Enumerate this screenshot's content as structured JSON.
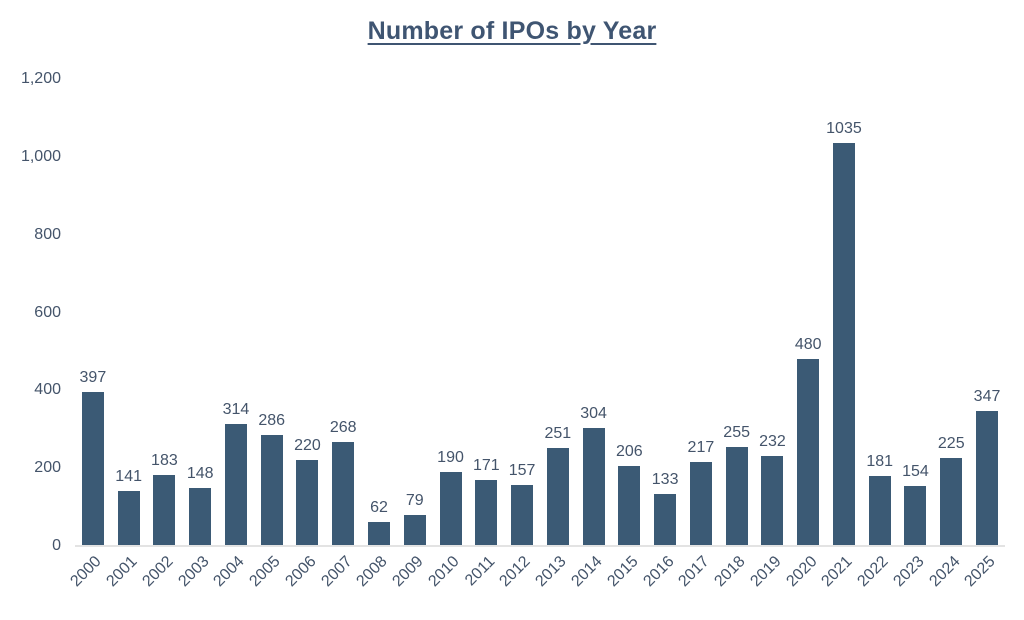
{
  "chart_data": {
    "type": "bar",
    "title": "Number of IPOs by Year",
    "categories": [
      "2000",
      "2001",
      "2002",
      "2003",
      "2004",
      "2005",
      "2006",
      "2007",
      "2008",
      "2009",
      "2010",
      "2011",
      "2012",
      "2013",
      "2014",
      "2015",
      "2016",
      "2017",
      "2018",
      "2019",
      "2020",
      "2021",
      "2022",
      "2023",
      "2024",
      "2025"
    ],
    "values": [
      397,
      141,
      183,
      148,
      314,
      286,
      220,
      268,
      62,
      79,
      190,
      171,
      157,
      251,
      304,
      206,
      133,
      217,
      255,
      232,
      480,
      1035,
      181,
      154,
      225,
      347
    ],
    "xlabel": "",
    "ylabel": "",
    "ylim": [
      0,
      1200
    ],
    "y_ticks": [
      {
        "label": "1,200",
        "value": 1200
      },
      {
        "label": "1,000",
        "value": 1000
      },
      {
        "label": "800",
        "value": 800
      },
      {
        "label": "600",
        "value": 600
      },
      {
        "label": "400",
        "value": 400
      },
      {
        "label": "200",
        "value": 200
      },
      {
        "label": "0",
        "value": 0
      }
    ],
    "grid": false,
    "legend": false,
    "bar_color": "#3b5a75",
    "text_color": "#44546a",
    "axis_line_color": "#e3e3e3"
  }
}
